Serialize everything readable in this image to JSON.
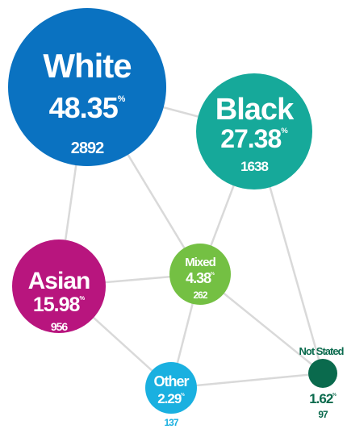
{
  "unit": "%",
  "nodes": [
    {
      "label": "White",
      "percent": "48.35",
      "count": "2892"
    },
    {
      "label": "Black",
      "percent": "27.38",
      "count": "1638"
    },
    {
      "label": "Asian",
      "percent": "15.98",
      "count": "956"
    },
    {
      "label": "Mixed",
      "percent": "4.38",
      "count": "262"
    },
    {
      "label": "Other",
      "percent": "2.29",
      "count": "137"
    },
    {
      "label": "Not Stated",
      "percent": "1.62",
      "count": "97"
    }
  ]
}
